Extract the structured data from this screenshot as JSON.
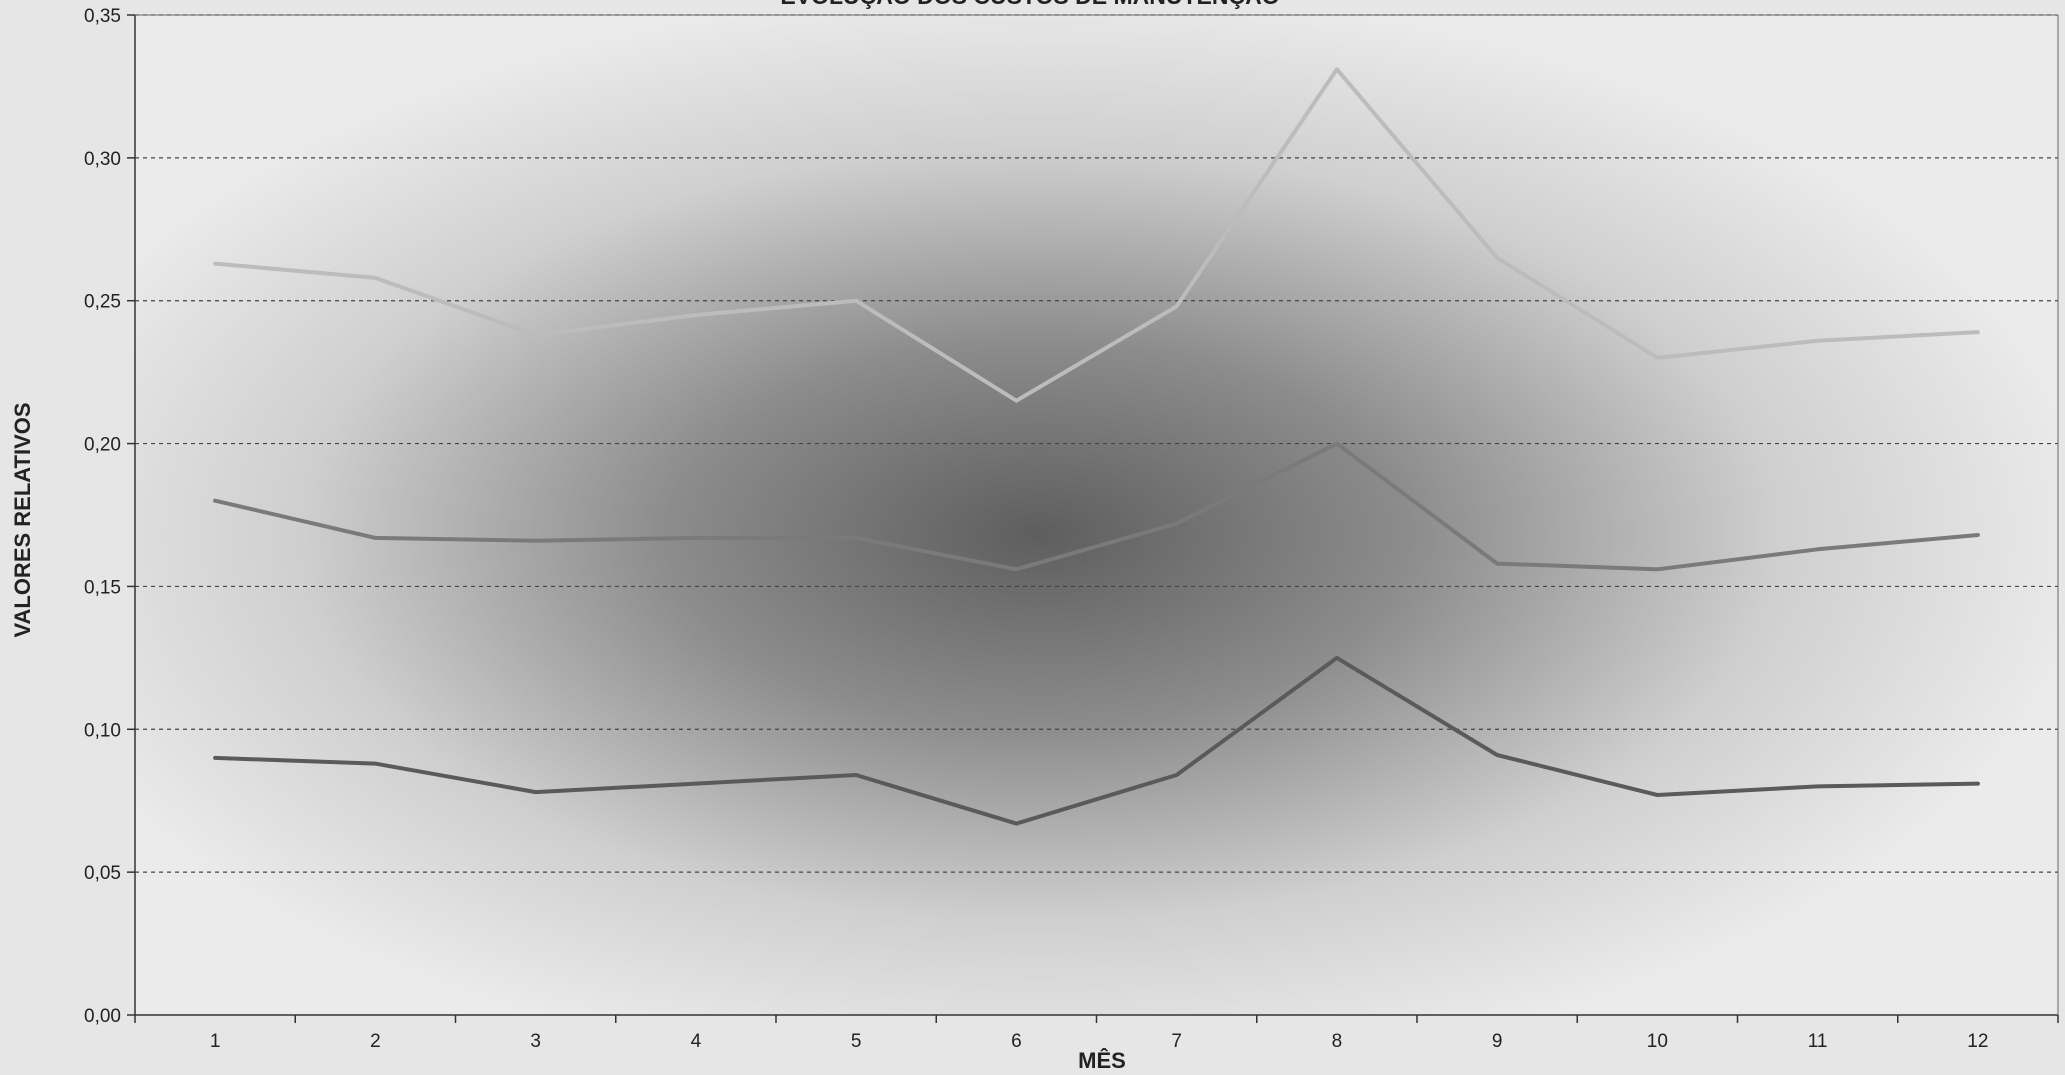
{
  "chart_data": {
    "type": "line",
    "title": "EVOLUÇÃO DOS CUSTOS DE MANUTENÇÃO",
    "xlabel": "MÊS",
    "ylabel": "VALORES RELATIVOS",
    "x": [
      1,
      2,
      3,
      4,
      5,
      6,
      7,
      8,
      9,
      10,
      11,
      12
    ],
    "x_tick_labels": [
      "1",
      "2",
      "3",
      "4",
      "5",
      "6",
      "7",
      "8",
      "9",
      "10",
      "11",
      "12"
    ],
    "y_tick_labels": [
      "0,00",
      "0,05",
      "0,10",
      "0,15",
      "0,20",
      "0,25",
      "0,30",
      "0,35"
    ],
    "ylim": [
      0,
      0.35
    ],
    "grid": "horizontal dashed",
    "legend": "none",
    "series": [
      {
        "values": [
          0.263,
          0.258,
          0.238,
          0.245,
          0.25,
          0.215,
          0.248,
          0.331,
          0.265,
          0.23,
          0.236,
          0.239
        ],
        "color": "#bcbcbc"
      },
      {
        "values": [
          0.18,
          0.167,
          0.166,
          0.167,
          0.167,
          0.156,
          0.172,
          0.2,
          0.158,
          0.156,
          0.163,
          0.168
        ],
        "color": "#7a7a7a"
      },
      {
        "values": [
          0.09,
          0.088,
          0.078,
          0.081,
          0.084,
          0.067,
          0.084,
          0.125,
          0.091,
          0.077,
          0.08,
          0.081
        ],
        "color": "#5a5a5a"
      }
    ]
  }
}
